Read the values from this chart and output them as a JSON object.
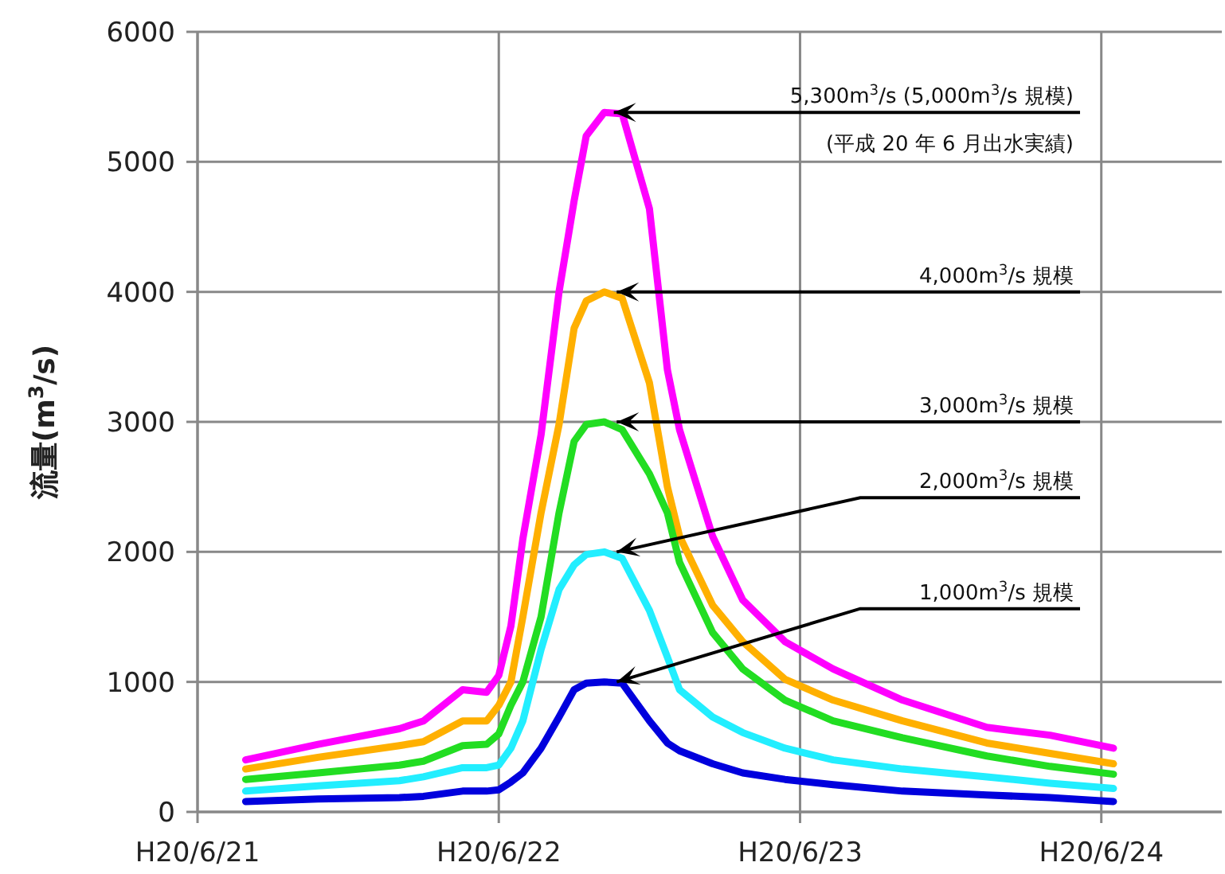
{
  "chart_data": {
    "type": "line",
    "ylabel": "流量(m$^{3}$/s)",
    "xlim": [
      "--06-21",
      "--06-24T09:36"
    ],
    "ylim": [
      0,
      6000
    ],
    "xticks": [
      {
        "value": "--06-21",
        "label": "H20/6/21"
      },
      {
        "value": "--06-22",
        "label": "H20/6/22"
      },
      {
        "value": "--06-23",
        "label": "H20/6/23"
      },
      {
        "value": "--06-24",
        "label": "H20/6/24"
      }
    ],
    "yticks": [
      0,
      1000,
      2000,
      3000,
      4000,
      5000,
      6000
    ],
    "grid": true,
    "marker": "none",
    "line_style": "solid",
    "x": [
      "--06-21T03:50",
      "--06-21T09:36",
      "--06-21T16:05",
      "--06-21T18:00",
      "--06-21T21:07",
      "--06-21T23:02",
      "--06-22T00:00",
      "--06-22T00:58",
      "--06-22T01:55",
      "--06-22T03:22",
      "--06-22T04:48",
      "--06-22T06:00",
      "--06-22T06:58",
      "--06-22T08:24",
      "--06-22T09:50",
      "--06-22T12:00",
      "--06-22T13:26",
      "--06-22T14:24",
      "--06-22T17:02",
      "--06-22T19:26",
      "--06-22T22:48",
      "--06-23T02:38",
      "--06-23T08:10",
      "--06-23T14:53",
      "--06-23T19:55",
      "--06-24T00:58"
    ],
    "series": [
      {
        "color": "#ff00ff",
        "values": [
          400,
          520,
          640,
          700,
          940,
          920,
          1050,
          1430,
          2100,
          2900,
          4000,
          4700,
          5200,
          5380,
          5370,
          4640,
          3400,
          2940,
          2120,
          1630,
          1310,
          1100,
          860,
          650,
          590,
          490
        ]
      },
      {
        "color": "#ffb000",
        "values": [
          330,
          420,
          510,
          540,
          700,
          700,
          820,
          1000,
          1500,
          2300,
          2980,
          3720,
          3930,
          4000,
          3950,
          3300,
          2500,
          2120,
          1590,
          1310,
          1020,
          860,
          700,
          530,
          450,
          370
        ]
      },
      {
        "color": "#22dd22",
        "values": [
          250,
          300,
          360,
          390,
          510,
          520,
          600,
          820,
          1000,
          1500,
          2300,
          2850,
          2980,
          3000,
          2940,
          2600,
          2300,
          1920,
          1380,
          1100,
          860,
          700,
          570,
          430,
          350,
          290
        ]
      },
      {
        "color": "#22eeff",
        "values": [
          160,
          200,
          240,
          270,
          340,
          340,
          360,
          490,
          700,
          1250,
          1710,
          1900,
          1980,
          2000,
          1950,
          1550,
          1190,
          940,
          730,
          610,
          490,
          400,
          330,
          270,
          220,
          180
        ]
      },
      {
        "color": "#0000dd",
        "values": [
          80,
          100,
          110,
          120,
          160,
          160,
          170,
          230,
          300,
          490,
          730,
          940,
          990,
          1000,
          990,
          700,
          530,
          470,
          370,
          300,
          250,
          210,
          160,
          130,
          110,
          80
        ]
      }
    ],
    "annotations": [
      {
        "text": "5,300m$^{3}$/s (5,000m$^{3}$/s 規模)",
        "x": "--06-22T08:24",
        "y": 5380
      },
      "(平成 20 年 6 月出水実績)",
      {
        "text": "4,000m$^{3}$/s 規模",
        "x": "--06-22T08:38",
        "y": 4000
      },
      {
        "text": "3,000m$^{3}$/s 規模",
        "x": "--06-22T08:38",
        "y": 3000
      },
      {
        "text": "2,000m$^{3}$/s 規模",
        "x": "--06-22T08:38",
        "y": 2000
      },
      {
        "text": "1,000m$^{3}$/s 規模",
        "x": "--06-22T08:38",
        "y": 1000
      }
    ]
  }
}
